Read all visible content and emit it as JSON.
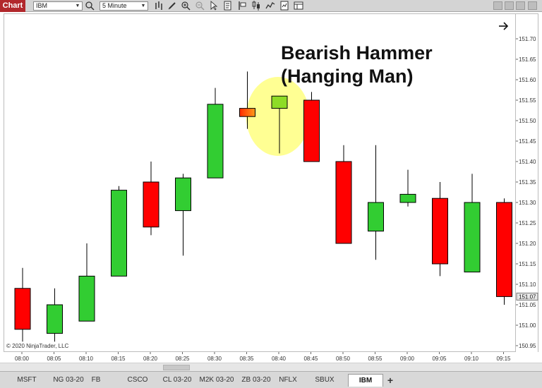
{
  "toolbar": {
    "chart_label": "Chart",
    "instrument": "IBM",
    "interval": "5 Minute",
    "icons": [
      "search-icon",
      "bar-type-icon",
      "pencil-icon",
      "zoom-in-icon",
      "zoom-out-icon",
      "cursor-icon",
      "properties-icon",
      "data-box-icon",
      "strategies-icon",
      "indicators-icon",
      "templates-icon",
      "window-layout-icon"
    ]
  },
  "annotation": {
    "line1": "Bearish Hammer",
    "line2": "(Hanging Man)"
  },
  "copyright": "© 2020 NinjaTrader, LLC",
  "price_axis": {
    "ticks": [
      "151.70",
      "151.65",
      "151.60",
      "151.55",
      "151.50",
      "151.45",
      "151.40",
      "151.35",
      "151.30",
      "151.25",
      "151.20",
      "151.15",
      "151.10",
      "151.05",
      "151.00",
      "150.95"
    ],
    "current_price": "151.07"
  },
  "time_axis": {
    "ticks": [
      "08:00",
      "08:05",
      "08:10",
      "08:15",
      "08:20",
      "08:25",
      "08:30",
      "08:35",
      "08:40",
      "08:45",
      "08:50",
      "08:55",
      "09:00",
      "09:05",
      "09:10",
      "09:15"
    ]
  },
  "tabs": {
    "items": [
      "MSFT",
      "NG 03-20",
      "FB",
      "CSCO",
      "CL 03-20",
      "M2K 03-20",
      "ZB 03-20",
      "NFLX",
      "SBUX",
      "IBM"
    ],
    "active": "IBM",
    "add_label": "+"
  },
  "colors": {
    "up": "#32cd32",
    "down": "#ff0000",
    "highlight": "#ffff80",
    "current_price_bg": "#e8e8e8"
  },
  "chart_data": {
    "type": "candlestick",
    "x": [
      "08:00",
      "08:05",
      "08:10",
      "08:15",
      "08:20",
      "08:25",
      "08:30",
      "08:35",
      "08:40",
      "08:45",
      "08:50",
      "08:55",
      "09:00",
      "09:05",
      "09:10",
      "09:15"
    ],
    "ylim": [
      150.93,
      151.72
    ],
    "series": [
      {
        "open": 151.09,
        "high": 151.14,
        "low": 150.96,
        "close": 150.99,
        "color": "down"
      },
      {
        "open": 150.98,
        "high": 151.09,
        "low": 150.96,
        "close": 151.05,
        "color": "up"
      },
      {
        "open": 151.01,
        "high": 151.2,
        "low": 151.01,
        "close": 151.12,
        "color": "up"
      },
      {
        "open": 151.12,
        "high": 151.34,
        "low": 151.12,
        "close": 151.33,
        "color": "up"
      },
      {
        "open": 151.35,
        "high": 151.4,
        "low": 151.22,
        "close": 151.24,
        "color": "down"
      },
      {
        "open": 151.28,
        "high": 151.37,
        "low": 151.17,
        "close": 151.36,
        "color": "up"
      },
      {
        "open": 151.36,
        "high": 151.58,
        "low": 151.36,
        "close": 151.54,
        "color": "up"
      },
      {
        "open": 151.53,
        "high": 151.62,
        "low": 151.48,
        "close": 151.51,
        "color": "down-orange"
      },
      {
        "open": 151.53,
        "high": 151.56,
        "low": 151.42,
        "close": 151.56,
        "color": "up-light"
      },
      {
        "open": 151.55,
        "high": 151.57,
        "low": 151.4,
        "close": 151.4,
        "color": "down"
      },
      {
        "open": 151.4,
        "high": 151.44,
        "low": 151.2,
        "close": 151.2,
        "color": "down"
      },
      {
        "open": 151.23,
        "high": 151.44,
        "low": 151.16,
        "close": 151.3,
        "color": "up"
      },
      {
        "open": 151.3,
        "high": 151.38,
        "low": 151.29,
        "close": 151.32,
        "color": "up"
      },
      {
        "open": 151.31,
        "high": 151.35,
        "low": 151.12,
        "close": 151.15,
        "color": "down"
      },
      {
        "open": 151.13,
        "high": 151.37,
        "low": 151.13,
        "close": 151.3,
        "color": "up"
      },
      {
        "open": 151.3,
        "high": 151.31,
        "low": 151.05,
        "close": 151.07,
        "color": "down"
      }
    ]
  }
}
